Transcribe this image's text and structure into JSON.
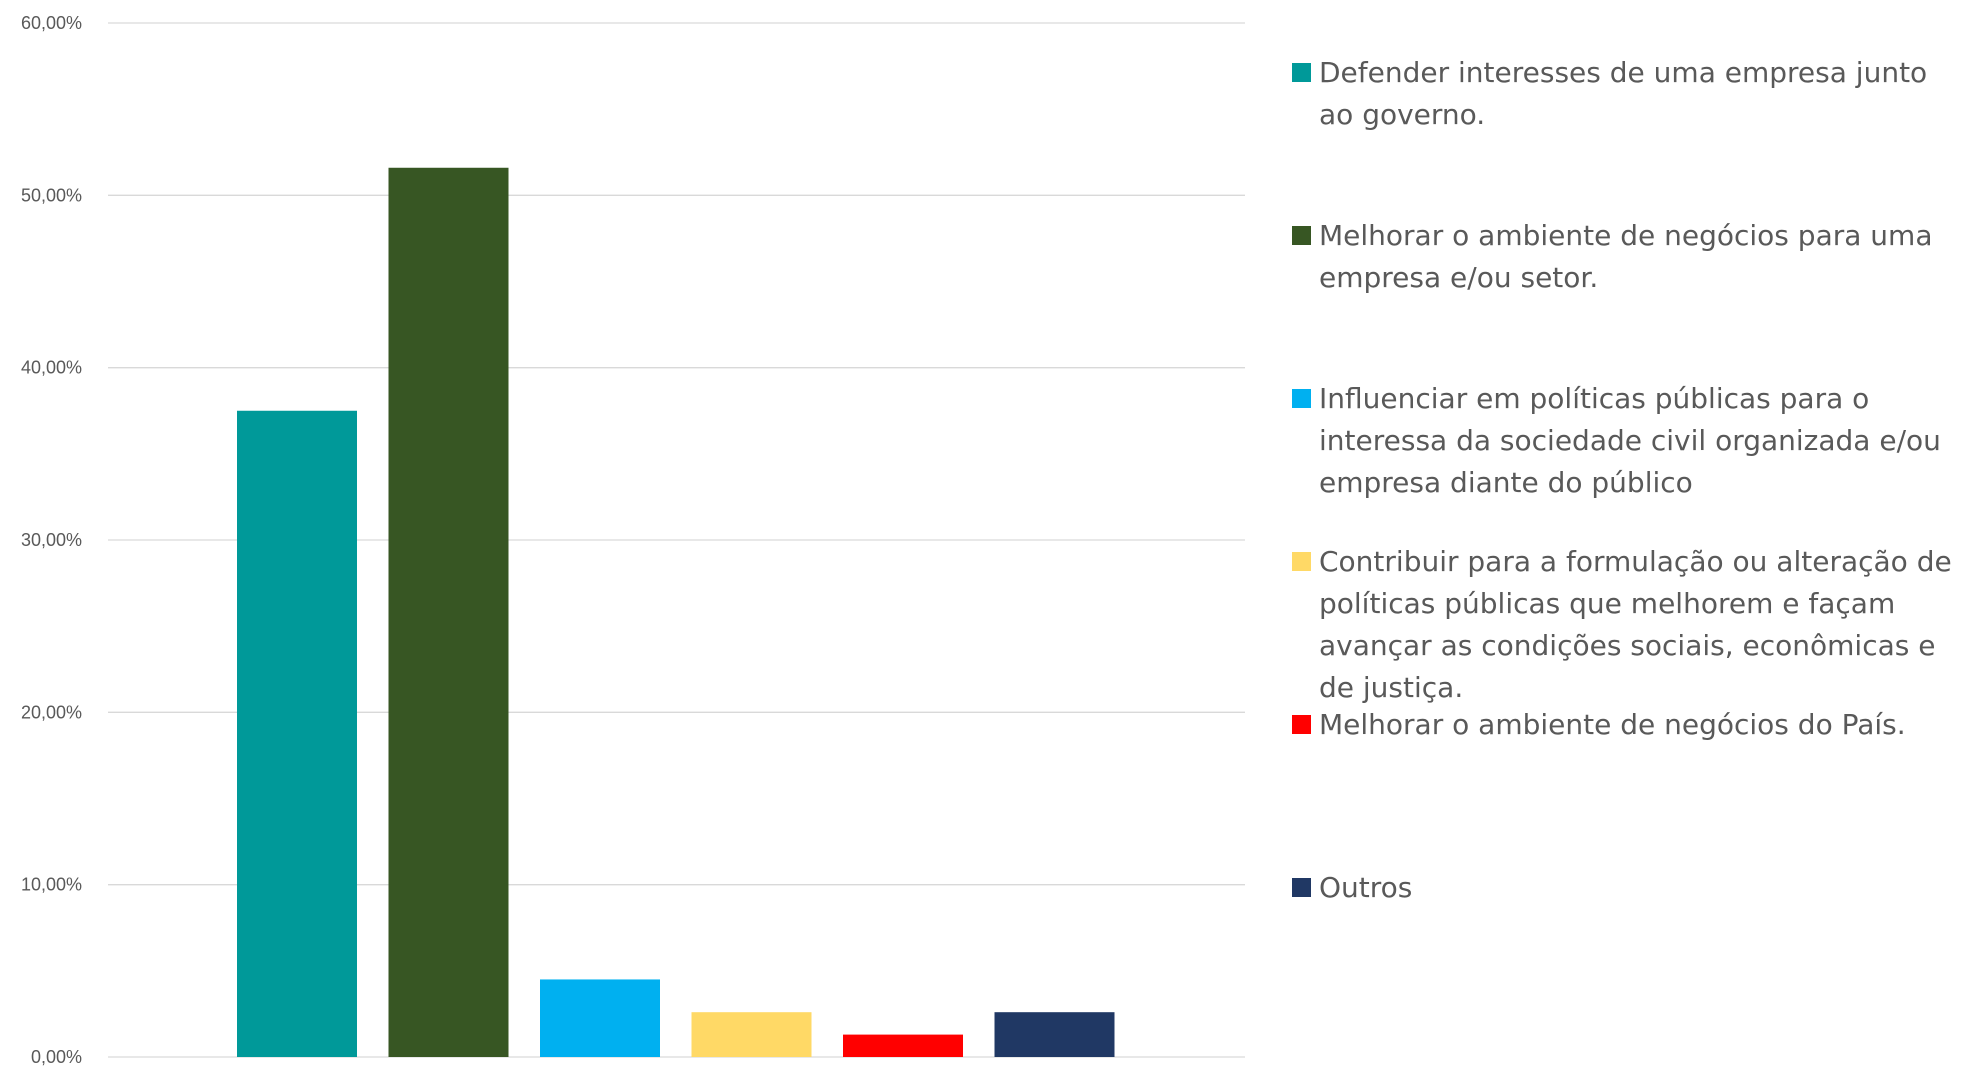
{
  "chart_data": {
    "type": "bar",
    "title": "",
    "xlabel": "",
    "ylabel": "",
    "ylim": [
      0,
      60
    ],
    "yticks": [
      0,
      10,
      20,
      30,
      40,
      50,
      60
    ],
    "ytick_labels": [
      "0,00%",
      "10,00%",
      "20,00%",
      "30,00%",
      "40,00%",
      "50,00%",
      "60,00%"
    ],
    "grid": true,
    "legend_position": "right",
    "categories": [
      "Defender interesses de uma empresa junto ao governo.",
      "Melhorar o ambiente de negócios para uma empresa e/ou setor.",
      "Influenciar em políticas públicas para o interessa da sociedade civil organizada e/ou empresa diante do público",
      "Contribuir para a formulação ou alteração de políticas públicas que melhorem e façam avançar as condições sociais, econômicas e de justiça.",
      "Melhorar o ambiente de negócios do País.",
      "Outros"
    ],
    "values": [
      37.5,
      51.6,
      4.5,
      2.6,
      1.3,
      2.6
    ],
    "colors": [
      "#009999",
      "#375623",
      "#00B0F0",
      "#FFD966",
      "#FF0000",
      "#203864"
    ]
  }
}
